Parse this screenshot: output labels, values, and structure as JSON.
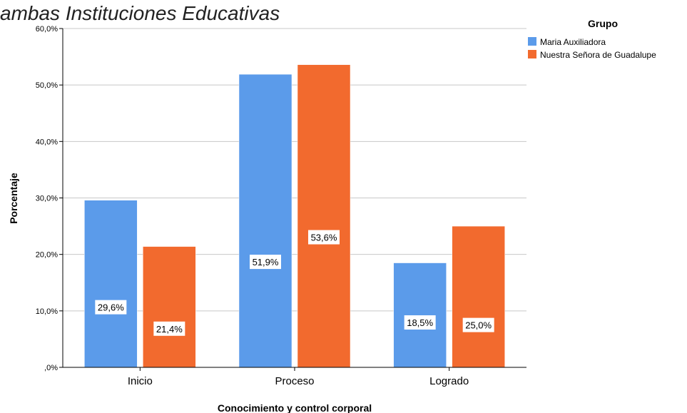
{
  "chart_data": {
    "type": "bar",
    "title": "ambas Instituciones Educativas",
    "xlabel": "Conocimiento y control corporal",
    "ylabel": "Porcentaje",
    "categories": [
      "Inicio",
      "Proceso",
      "Logrado"
    ],
    "series": [
      {
        "name": "Maria Auxiliadora",
        "values": [
          29.6,
          51.9,
          18.5
        ],
        "labels": [
          "29,6%",
          "51,9%",
          "18,5%"
        ],
        "color": "#5b9bea"
      },
      {
        "name": "Nuestra Señora de Guadalupe",
        "values": [
          21.4,
          53.6,
          25.0
        ],
        "labels": [
          "21,4%",
          "53,6%",
          "25,0%"
        ],
        "color": "#f26a2e"
      }
    ],
    "ylim": [
      0,
      60
    ],
    "yticks": [
      0,
      10,
      20,
      30,
      40,
      50,
      60
    ],
    "ytick_labels": [
      ",0%",
      "10,0%",
      "20,0%",
      "30,0%",
      "40,0%",
      "50,0%",
      "60,0%"
    ],
    "grid": true,
    "legend": {
      "title": "Grupo",
      "position": "top-right"
    }
  }
}
